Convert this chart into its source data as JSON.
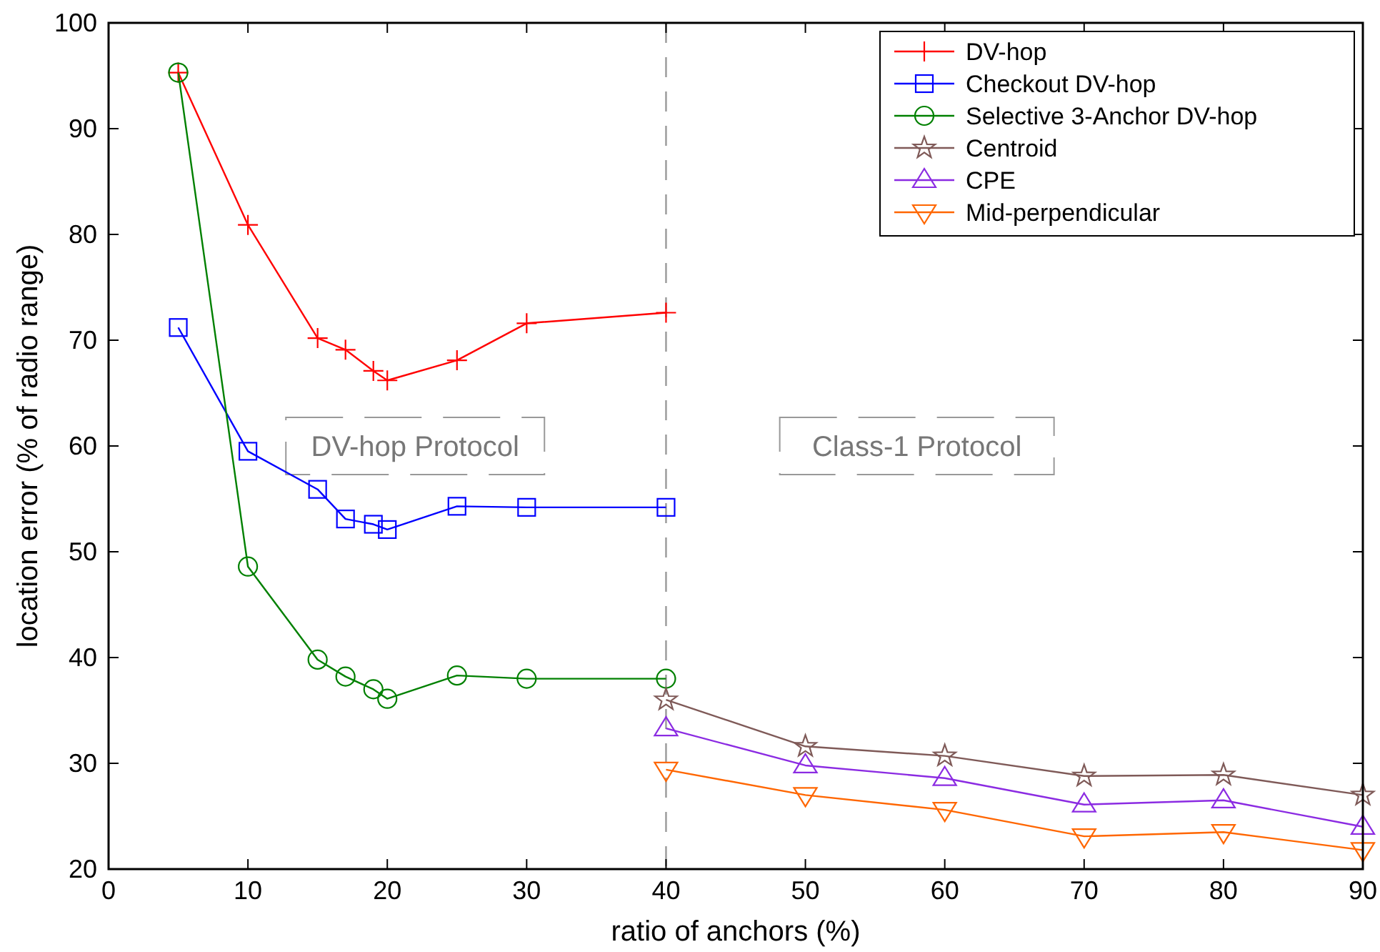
{
  "chart_data": {
    "type": "line",
    "xlabel": "ratio of anchors (%)",
    "ylabel": "location error (% of radio range)",
    "xlim": [
      0,
      90
    ],
    "xticks": [
      0,
      10,
      20,
      30,
      40,
      50,
      60,
      70,
      80,
      90
    ],
    "ylim": [
      20,
      100
    ],
    "yticks": [
      20,
      30,
      40,
      50,
      60,
      70,
      80,
      90,
      100
    ],
    "grid": false,
    "legend": "top right",
    "ref_lines": [
      {
        "axis": "x",
        "value": 40,
        "color": "#999999",
        "line_style": "dashed"
      }
    ],
    "annotations": [
      "DV-hop Protocol",
      "Class-1 Protocol"
    ],
    "series": [
      {
        "name": "DV-hop",
        "color": "#ff0000",
        "marker": "cross",
        "x": [
          5,
          10,
          15,
          17,
          19,
          20,
          25,
          30,
          40
        ],
        "values": [
          95.3,
          80.9,
          70.2,
          69.1,
          67.1,
          66.2,
          68.1,
          71.6,
          72.6
        ]
      },
      {
        "name": "Checkout DV-hop",
        "color": "#0000ff",
        "marker": "square",
        "x": [
          5,
          10,
          15,
          17,
          19,
          20,
          25,
          30,
          40
        ],
        "values": [
          71.2,
          59.5,
          55.9,
          53.1,
          52.6,
          52.1,
          54.3,
          54.2,
          54.2
        ]
      },
      {
        "name": "Selective 3-Anchor DV-hop",
        "color": "#008000",
        "marker": "circle",
        "x": [
          5,
          10,
          15,
          17,
          19,
          20,
          25,
          30,
          40
        ],
        "values": [
          95.3,
          48.6,
          39.8,
          38.2,
          37.0,
          36.1,
          38.3,
          38.0,
          38.0
        ]
      },
      {
        "name": "Centroid",
        "color": "#7f5a58",
        "marker": "star",
        "x": [
          40,
          50,
          60,
          70,
          80,
          90
        ],
        "values": [
          36.0,
          31.6,
          30.7,
          28.8,
          28.9,
          27.0
        ]
      },
      {
        "name": "CPE",
        "color": "#8b2be2",
        "marker": "triangle",
        "x": [
          40,
          50,
          60,
          70,
          80,
          90
        ],
        "values": [
          33.3,
          29.8,
          28.6,
          26.1,
          26.5,
          24.0
        ]
      },
      {
        "name": "Mid-perpendicular",
        "color": "#ff6600",
        "marker": "triangle-down",
        "x": [
          40,
          50,
          60,
          70,
          80,
          90
        ],
        "values": [
          29.4,
          27.0,
          25.6,
          23.1,
          23.5,
          21.8
        ]
      }
    ]
  }
}
